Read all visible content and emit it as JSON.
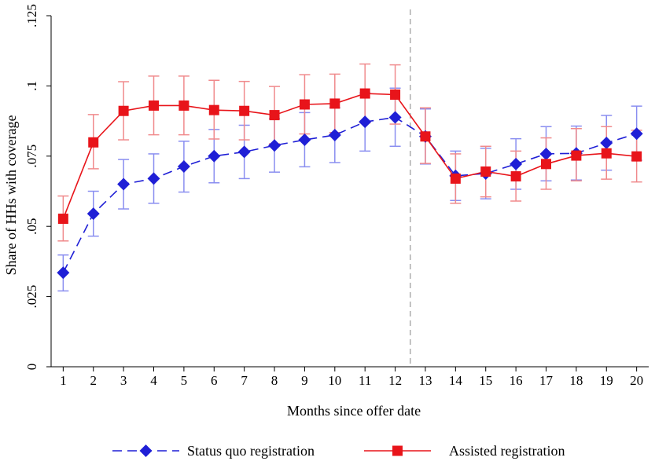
{
  "chart_data": {
    "type": "line",
    "title": "",
    "xlabel": "Months since offer date",
    "ylabel": "Share of HHs with coverage",
    "x": [
      1,
      2,
      3,
      4,
      5,
      6,
      7,
      8,
      9,
      10,
      11,
      12,
      13,
      14,
      15,
      16,
      17,
      18,
      19,
      20
    ],
    "xlim": [
      0.6,
      20.4
    ],
    "ylim": [
      0,
      0.125
    ],
    "yticks": [
      0,
      0.025,
      0.05,
      0.075,
      0.1,
      0.125
    ],
    "ytick_labels": [
      "0",
      ".025",
      ".05",
      ".075",
      ".1",
      ".125"
    ],
    "xtick_labels": [
      "1",
      "2",
      "3",
      "4",
      "5",
      "6",
      "7",
      "8",
      "9",
      "10",
      "11",
      "12",
      "13",
      "14",
      "15",
      "16",
      "17",
      "18",
      "19",
      "20"
    ],
    "vline_x": 12.5,
    "grid": false,
    "legend_position": "bottom",
    "series": [
      {
        "name": "Status quo registration",
        "color": "#1f1fd6",
        "ci_color": "#8a8ef0",
        "marker": "diamond",
        "line_style": "dashed",
        "values": [
          0.0335,
          0.0545,
          0.065,
          0.067,
          0.0713,
          0.075,
          0.0765,
          0.0788,
          0.0808,
          0.0825,
          0.0872,
          0.0888,
          0.082,
          0.068,
          0.0688,
          0.0722,
          0.0758,
          0.076,
          0.0797,
          0.083
        ],
        "ci_low": [
          0.027,
          0.0465,
          0.0562,
          0.0582,
          0.0622,
          0.0655,
          0.067,
          0.0693,
          0.0712,
          0.0727,
          0.0768,
          0.0785,
          0.0722,
          0.0592,
          0.0598,
          0.0632,
          0.0662,
          0.0665,
          0.07,
          0.0735
        ],
        "ci_high": [
          0.0398,
          0.0625,
          0.0738,
          0.0758,
          0.0803,
          0.0845,
          0.086,
          0.0883,
          0.0905,
          0.0922,
          0.0975,
          0.0992,
          0.0918,
          0.0768,
          0.0778,
          0.0812,
          0.0855,
          0.0857,
          0.0895,
          0.0928
        ]
      },
      {
        "name": "Assisted registration",
        "color": "#e8141a",
        "ci_color": "#f08a8c",
        "marker": "square",
        "line_style": "solid",
        "values": [
          0.0527,
          0.0799,
          0.0911,
          0.093,
          0.093,
          0.0914,
          0.0911,
          0.0896,
          0.0934,
          0.0937,
          0.0973,
          0.0969,
          0.082,
          0.067,
          0.0695,
          0.0678,
          0.0722,
          0.0752,
          0.076,
          0.0749
        ],
        "ci_low": [
          0.0448,
          0.0705,
          0.0808,
          0.0826,
          0.0826,
          0.0811,
          0.0808,
          0.0794,
          0.0829,
          0.0834,
          0.0868,
          0.0864,
          0.0724,
          0.0582,
          0.0605,
          0.059,
          0.0632,
          0.0662,
          0.0668,
          0.0658
        ],
        "ci_high": [
          0.0608,
          0.0898,
          0.1015,
          0.1035,
          0.1035,
          0.102,
          0.1016,
          0.0998,
          0.104,
          0.1042,
          0.1078,
          0.1075,
          0.0922,
          0.0758,
          0.0785,
          0.0768,
          0.0815,
          0.0848,
          0.0855,
          0.0842
        ]
      }
    ]
  }
}
